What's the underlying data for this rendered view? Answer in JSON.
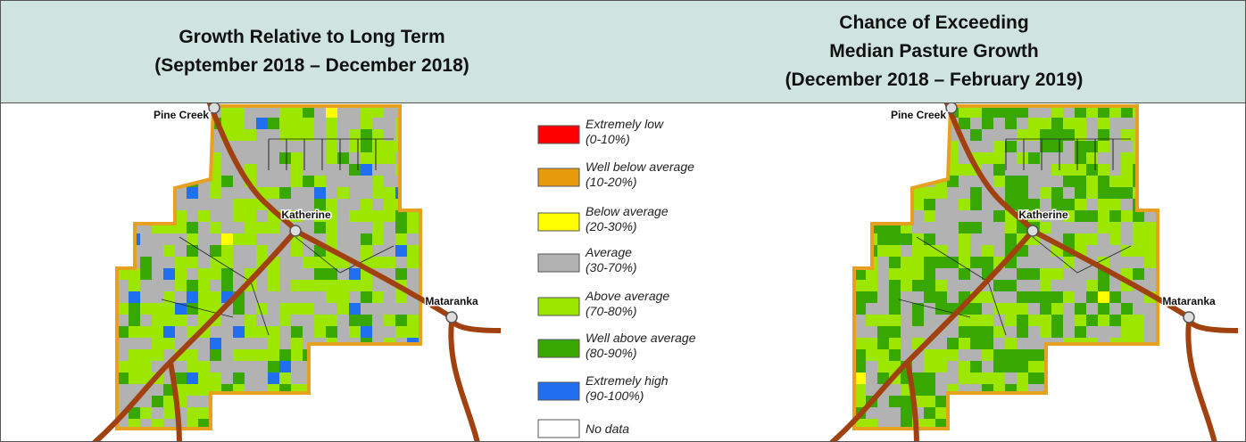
{
  "header": {
    "left_title": [
      "Growth Relative to Long Term",
      "(September 2018 – December 2018)"
    ],
    "right_title": [
      "Chance of Exceeding",
      "Median Pasture Growth",
      "(December 2018 – February 2019)"
    ]
  },
  "legend": [
    {
      "label": "Extremely low",
      "range": "(0-10%)",
      "color": "#ff0000"
    },
    {
      "label": "Well below average",
      "range": "(10-20%)",
      "color": "#e69a0c"
    },
    {
      "label": "Below average",
      "range": "(20-30%)",
      "color": "#ffff00"
    },
    {
      "label": "Average",
      "range": "(30-70%)",
      "color": "#b2b2b2"
    },
    {
      "label": "Above average",
      "range": "(70-80%)",
      "color": "#9de600"
    },
    {
      "label": "Well above average",
      "range": "(80-90%)",
      "color": "#38a800"
    },
    {
      "label": "Extremely high",
      "range": "(90-100%)",
      "color": "#1f6ff0"
    },
    {
      "label": "No data",
      "color": "#ffffff"
    }
  ],
  "places": [
    "Pine Creek",
    "Katherine",
    "Mataranka"
  ]
}
